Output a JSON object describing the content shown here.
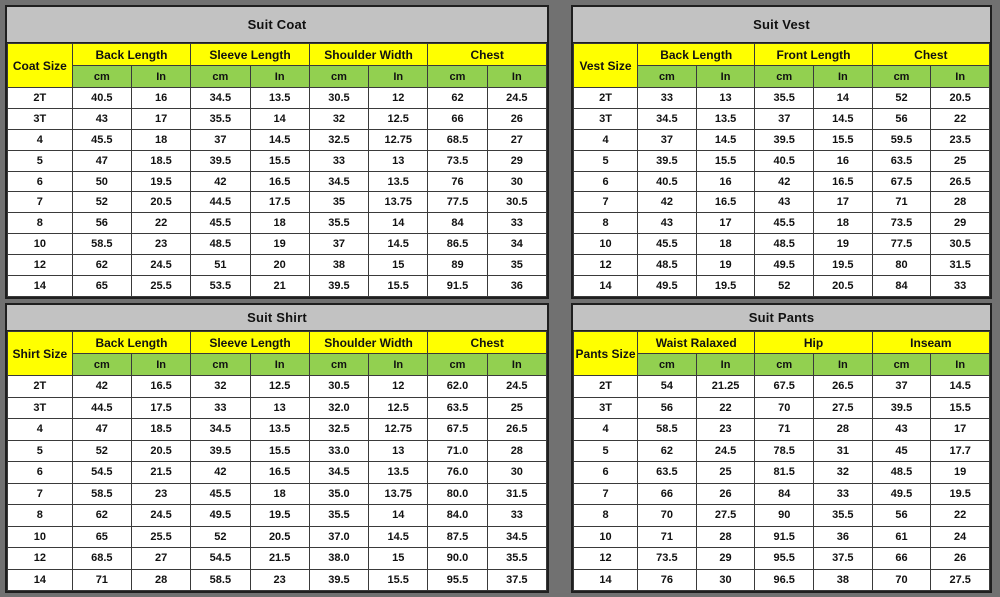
{
  "colors": {
    "page_background": "#717171",
    "title_bar": "#c2c2c2",
    "group_header": "#ffff00",
    "unit_header": "#92d050",
    "data_row": "#ffffff",
    "border": "#3a3a3a"
  },
  "chart_data": [
    {
      "type": "table",
      "title": "Suit Coat",
      "size_column_header": "Coat Size",
      "column_groups": [
        "Back Length",
        "Sleeve Length",
        "Shoulder Width",
        "Chest"
      ],
      "unit_subheaders": [
        "cm",
        "In"
      ],
      "rows": [
        [
          "2T",
          "40.5",
          "16",
          "34.5",
          "13.5",
          "30.5",
          "12",
          "62",
          "24.5"
        ],
        [
          "3T",
          "43",
          "17",
          "35.5",
          "14",
          "32",
          "12.5",
          "66",
          "26"
        ],
        [
          "4",
          "45.5",
          "18",
          "37",
          "14.5",
          "32.5",
          "12.75",
          "68.5",
          "27"
        ],
        [
          "5",
          "47",
          "18.5",
          "39.5",
          "15.5",
          "33",
          "13",
          "73.5",
          "29"
        ],
        [
          "6",
          "50",
          "19.5",
          "42",
          "16.5",
          "34.5",
          "13.5",
          "76",
          "30"
        ],
        [
          "7",
          "52",
          "20.5",
          "44.5",
          "17.5",
          "35",
          "13.75",
          "77.5",
          "30.5"
        ],
        [
          "8",
          "56",
          "22",
          "45.5",
          "18",
          "35.5",
          "14",
          "84",
          "33"
        ],
        [
          "10",
          "58.5",
          "23",
          "48.5",
          "19",
          "37",
          "14.5",
          "86.5",
          "34"
        ],
        [
          "12",
          "62",
          "24.5",
          "51",
          "20",
          "38",
          "15",
          "89",
          "35"
        ],
        [
          "14",
          "65",
          "25.5",
          "53.5",
          "21",
          "39.5",
          "15.5",
          "91.5",
          "36"
        ]
      ]
    },
    {
      "type": "table",
      "title": "Suit Vest",
      "size_column_header": "Vest Size",
      "column_groups": [
        "Back Length",
        "Front Length",
        "Chest"
      ],
      "unit_subheaders": [
        "cm",
        "In"
      ],
      "rows": [
        [
          "2T",
          "33",
          "13",
          "35.5",
          "14",
          "52",
          "20.5"
        ],
        [
          "3T",
          "34.5",
          "13.5",
          "37",
          "14.5",
          "56",
          "22"
        ],
        [
          "4",
          "37",
          "14.5",
          "39.5",
          "15.5",
          "59.5",
          "23.5"
        ],
        [
          "5",
          "39.5",
          "15.5",
          "40.5",
          "16",
          "63.5",
          "25"
        ],
        [
          "6",
          "40.5",
          "16",
          "42",
          "16.5",
          "67.5",
          "26.5"
        ],
        [
          "7",
          "42",
          "16.5",
          "43",
          "17",
          "71",
          "28"
        ],
        [
          "8",
          "43",
          "17",
          "45.5",
          "18",
          "73.5",
          "29"
        ],
        [
          "10",
          "45.5",
          "18",
          "48.5",
          "19",
          "77.5",
          "30.5"
        ],
        [
          "12",
          "48.5",
          "19",
          "49.5",
          "19.5",
          "80",
          "31.5"
        ],
        [
          "14",
          "49.5",
          "19.5",
          "52",
          "20.5",
          "84",
          "33"
        ]
      ]
    },
    {
      "type": "table",
      "title": "Suit Shirt",
      "size_column_header": "Shirt Size",
      "column_groups": [
        "Back Length",
        "Sleeve Length",
        "Shoulder Width",
        "Chest"
      ],
      "unit_subheaders": [
        "cm",
        "In"
      ],
      "rows": [
        [
          "2T",
          "42",
          "16.5",
          "32",
          "12.5",
          "30.5",
          "12",
          "62.0",
          "24.5"
        ],
        [
          "3T",
          "44.5",
          "17.5",
          "33",
          "13",
          "32.0",
          "12.5",
          "63.5",
          "25"
        ],
        [
          "4",
          "47",
          "18.5",
          "34.5",
          "13.5",
          "32.5",
          "12.75",
          "67.5",
          "26.5"
        ],
        [
          "5",
          "52",
          "20.5",
          "39.5",
          "15.5",
          "33.0",
          "13",
          "71.0",
          "28"
        ],
        [
          "6",
          "54.5",
          "21.5",
          "42",
          "16.5",
          "34.5",
          "13.5",
          "76.0",
          "30"
        ],
        [
          "7",
          "58.5",
          "23",
          "45.5",
          "18",
          "35.0",
          "13.75",
          "80.0",
          "31.5"
        ],
        [
          "8",
          "62",
          "24.5",
          "49.5",
          "19.5",
          "35.5",
          "14",
          "84.0",
          "33"
        ],
        [
          "10",
          "65",
          "25.5",
          "52",
          "20.5",
          "37.0",
          "14.5",
          "87.5",
          "34.5"
        ],
        [
          "12",
          "68.5",
          "27",
          "54.5",
          "21.5",
          "38.0",
          "15",
          "90.0",
          "35.5"
        ],
        [
          "14",
          "71",
          "28",
          "58.5",
          "23",
          "39.5",
          "15.5",
          "95.5",
          "37.5"
        ]
      ]
    },
    {
      "type": "table",
      "title": "Suit Pants",
      "size_column_header": "Pants Size",
      "column_groups": [
        "Waist Ralaxed",
        "Hip",
        "Inseam"
      ],
      "unit_subheaders": [
        "cm",
        "In"
      ],
      "rows": [
        [
          "2T",
          "54",
          "21.25",
          "67.5",
          "26.5",
          "37",
          "14.5"
        ],
        [
          "3T",
          "56",
          "22",
          "70",
          "27.5",
          "39.5",
          "15.5"
        ],
        [
          "4",
          "58.5",
          "23",
          "71",
          "28",
          "43",
          "17"
        ],
        [
          "5",
          "62",
          "24.5",
          "78.5",
          "31",
          "45",
          "17.7"
        ],
        [
          "6",
          "63.5",
          "25",
          "81.5",
          "32",
          "48.5",
          "19"
        ],
        [
          "7",
          "66",
          "26",
          "84",
          "33",
          "49.5",
          "19.5"
        ],
        [
          "8",
          "70",
          "27.5",
          "90",
          "35.5",
          "56",
          "22"
        ],
        [
          "10",
          "71",
          "28",
          "91.5",
          "36",
          "61",
          "24"
        ],
        [
          "12",
          "73.5",
          "29",
          "95.5",
          "37.5",
          "66",
          "26"
        ],
        [
          "14",
          "76",
          "30",
          "96.5",
          "38",
          "70",
          "27.5"
        ]
      ]
    }
  ]
}
